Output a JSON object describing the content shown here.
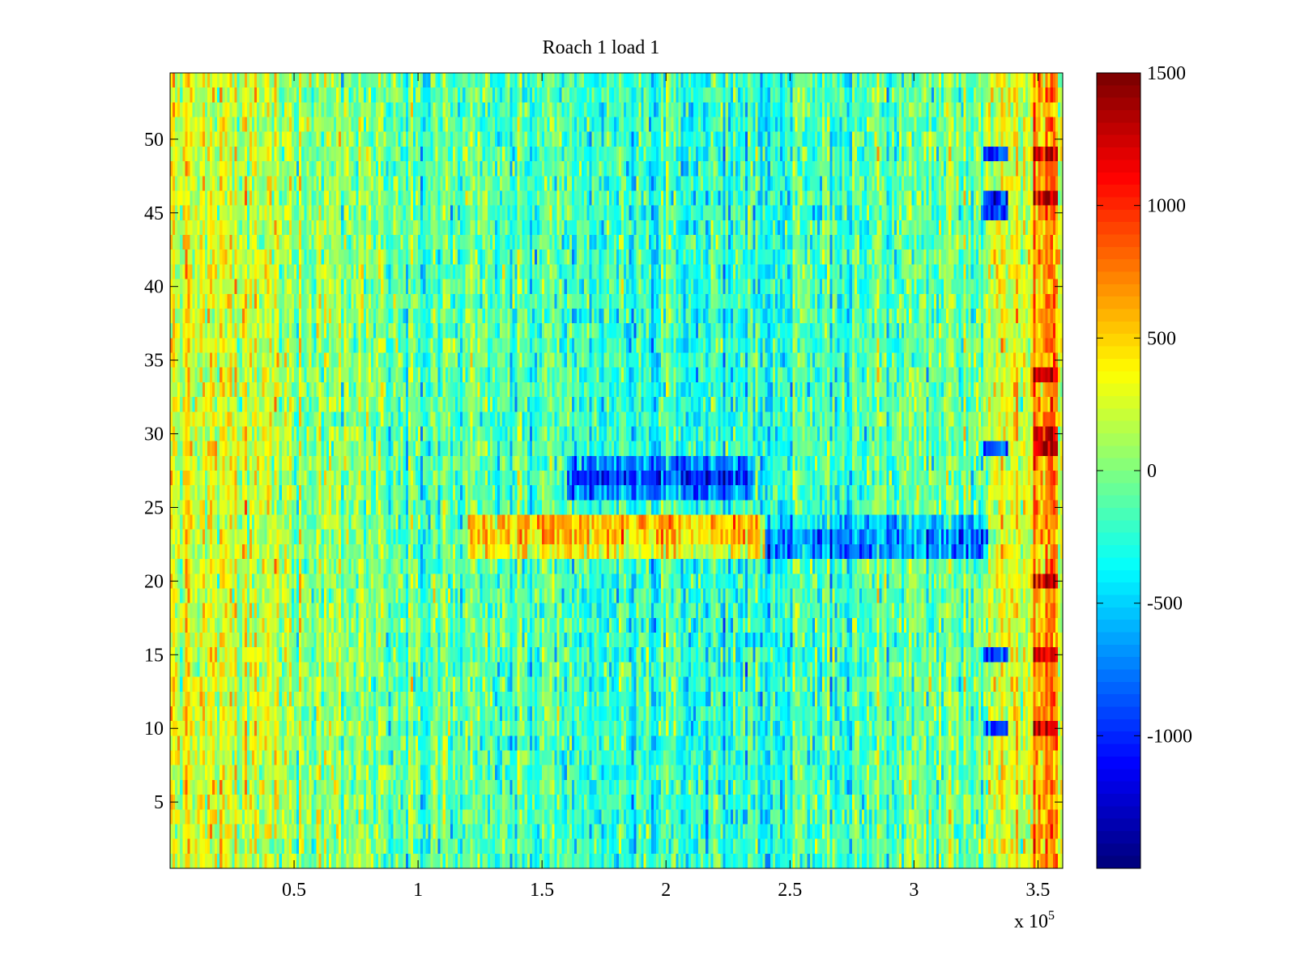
{
  "chart_data": {
    "type": "heatmap",
    "title": "Roach 1 load 1",
    "xlabel": "",
    "ylabel": "",
    "x_exponent_label": "x 10",
    "x_exponent_power": "5",
    "xlim": [
      0,
      3.6
    ],
    "ylim": [
      0.5,
      54.5
    ],
    "x_ticks": [
      0.5,
      1,
      1.5,
      2,
      2.5,
      3,
      3.5
    ],
    "x_tick_labels": [
      "0.5",
      "1",
      "1.5",
      "2",
      "2.5",
      "3",
      "3.5"
    ],
    "y_ticks": [
      5,
      10,
      15,
      20,
      25,
      30,
      35,
      40,
      45,
      50
    ],
    "y_tick_labels": [
      "5",
      "10",
      "15",
      "20",
      "25",
      "30",
      "35",
      "40",
      "45",
      "50"
    ],
    "rows": 54,
    "columns": 360,
    "colormap": "jet",
    "clim": [
      -1500,
      1500
    ],
    "colorbar": {
      "ticks": [
        1500,
        1000,
        500,
        0,
        -500,
        -1000
      ],
      "tick_labels": [
        "1500",
        "1000",
        "500",
        "0",
        "-500",
        "-1000"
      ]
    },
    "features": {
      "background_mean": 0,
      "left_region_mean": 300,
      "center_region_mean": -250,
      "band_rows_26_28_low": {
        "x_range": [
          1.6,
          2.35
        ],
        "value": -900
      },
      "band_rows_22_24_mixed": {
        "high_x_range": [
          1.2,
          2.4
        ],
        "high_value": 500,
        "low_x_range": [
          2.4,
          3.4
        ],
        "low_value": -700
      },
      "right_edge_high": {
        "x_range": [
          3.48,
          3.58
        ],
        "value": 1300
      },
      "right_edge_low": {
        "x_range": [
          3.28,
          3.38
        ],
        "value": -1000
      }
    }
  }
}
